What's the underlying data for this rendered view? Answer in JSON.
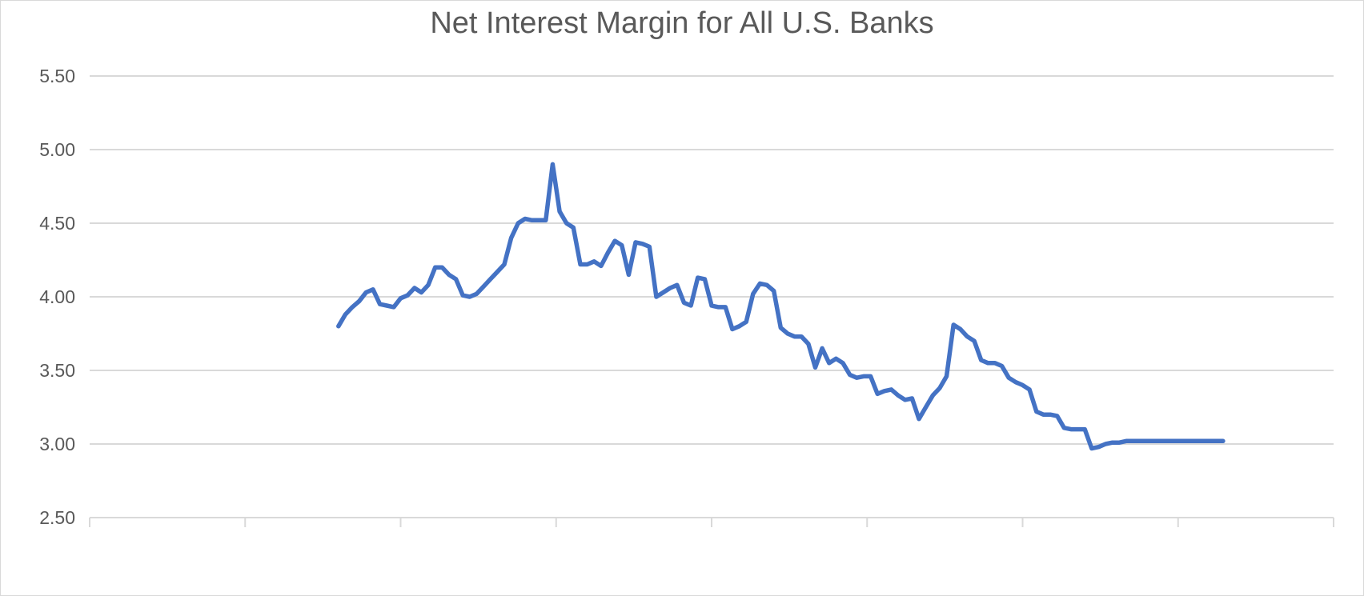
{
  "chart_data": {
    "type": "line",
    "title": "Net Interest Margin for All U.S. Banks",
    "xlabel": "",
    "ylabel": "",
    "ylim": [
      2.5,
      5.5
    ],
    "y_ticks": [
      "5.50",
      "5.00",
      "4.50",
      "4.00",
      "3.50",
      "3.00",
      "2.50"
    ],
    "x_tick_labels": [],
    "x_tick_count": 9,
    "x_range": [
      0,
      180
    ],
    "grid": true,
    "legend": "none",
    "series": [
      {
        "color": "#4472c4",
        "x": [
          36,
          37,
          38,
          39,
          40,
          41,
          42,
          43,
          44,
          45,
          46,
          47,
          48,
          49,
          50,
          51,
          52,
          53,
          54,
          55,
          56,
          57,
          58,
          59,
          60,
          61,
          62,
          63,
          64,
          65,
          66,
          67,
          68,
          69,
          70,
          71,
          72,
          73,
          74,
          75,
          76,
          77,
          78,
          79,
          80,
          81,
          82,
          83,
          84,
          85,
          86,
          87,
          88,
          89,
          90,
          91,
          92,
          93,
          94,
          95,
          96,
          97,
          98,
          99,
          100,
          101,
          102,
          103,
          104,
          105,
          106,
          107,
          108,
          109,
          110,
          111,
          112,
          113,
          114,
          115,
          116,
          117,
          118,
          119,
          120,
          121,
          122,
          123,
          124,
          125,
          126,
          127,
          128,
          129,
          130,
          131,
          132,
          133,
          134,
          135,
          136,
          137,
          138,
          139,
          140,
          141,
          142,
          143,
          144,
          145,
          146,
          147,
          148,
          149,
          150,
          151,
          152,
          153,
          154,
          155,
          156,
          157,
          158,
          159,
          160,
          161,
          162,
          163,
          164
        ],
        "values": [
          3.8,
          3.88,
          3.93,
          3.97,
          4.03,
          4.05,
          3.95,
          3.94,
          3.93,
          3.99,
          4.01,
          4.06,
          4.03,
          4.08,
          4.2,
          4.2,
          4.15,
          4.12,
          4.01,
          4.0,
          4.02,
          4.07,
          4.12,
          4.17,
          4.22,
          4.4,
          4.5,
          4.53,
          4.52,
          4.52,
          4.52,
          4.9,
          4.58,
          4.5,
          4.47,
          4.22,
          4.22,
          4.24,
          4.21,
          4.3,
          4.38,
          4.35,
          4.15,
          4.37,
          4.36,
          4.34,
          4.0,
          4.03,
          4.06,
          4.08,
          3.96,
          3.94,
          4.13,
          4.12,
          3.94,
          3.93,
          3.93,
          3.78,
          3.8,
          3.83,
          4.02,
          4.09,
          4.08,
          4.04,
          3.79,
          3.75,
          3.73,
          3.73,
          3.68,
          3.52,
          3.65,
          3.55,
          3.58,
          3.55,
          3.47,
          3.45,
          3.46,
          3.46,
          3.34,
          3.36,
          3.37,
          3.33,
          3.3,
          3.31,
          3.17,
          3.25,
          3.33,
          3.38,
          3.46,
          3.81,
          3.78,
          3.73,
          3.7,
          3.57,
          3.55,
          3.55,
          3.53,
          3.45,
          3.42,
          3.4,
          3.37,
          3.22,
          3.2,
          3.2,
          3.19,
          3.11,
          3.1,
          3.1,
          3.1,
          2.97,
          2.98,
          3.0,
          3.01,
          3.01,
          3.02,
          3.02,
          3.02,
          3.02,
          3.02,
          3.02,
          3.02,
          3.02,
          3.02,
          3.02,
          3.02,
          3.02,
          3.02,
          3.02,
          3.02
        ]
      }
    ]
  }
}
